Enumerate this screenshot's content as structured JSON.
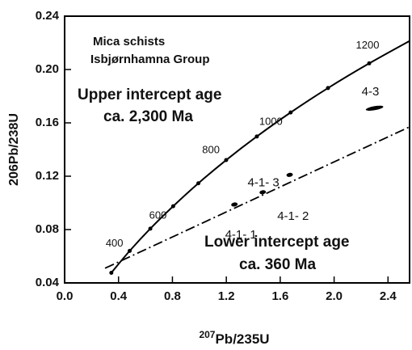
{
  "chart_data": {
    "type": "line",
    "xlabel": [
      "207",
      "Pb/235U"
    ],
    "ylabel": "206Pb/238U",
    "xlim": [
      0,
      2.56
    ],
    "ylim": [
      0.04,
      0.24
    ],
    "xticks": [
      {
        "value": 0,
        "label": "0.0"
      },
      0.4,
      0.8,
      1.2,
      1.6,
      {
        "value": 2,
        "label": "2.0"
      },
      2.4
    ],
    "yticks": [
      0.04,
      0.08,
      0.12,
      0.16,
      {
        "value": 0.2,
        "label": "0.20"
      },
      0.24
    ],
    "annotations": [
      "Mica schists",
      "Isbjørnhamna Group",
      "Upper intercept age",
      "ca. 2,300 Ma",
      "Lower intercept age",
      "ca. 360 Ma"
    ],
    "concordia": {
      "color": "#000",
      "x": [
        0.3466,
        0.4828,
        0.636,
        0.8056,
        0.9925,
        1.1987,
        1.4264,
        1.6774,
        1.9546,
        2.2603,
        2.5976
      ],
      "values": [
        0.0476,
        0.064,
        0.0807,
        0.0975,
        0.1147,
        0.1321,
        0.1498,
        0.1678,
        0.1861,
        0.2046,
        0.2235
      ],
      "labels": [
        null,
        "400",
        null,
        "600",
        null,
        "800",
        null,
        "1000",
        null,
        "1200",
        null
      ]
    },
    "discordia": {
      "color": "#000",
      "x": [
        0.3,
        2.56
      ],
      "values": [
        0.051,
        0.157
      ]
    },
    "points": {
      "color": "#000",
      "x": [
        1.26,
        1.47,
        1.67,
        2.3
      ],
      "values": [
        0.0988,
        0.108,
        0.121,
        0.171
      ],
      "labels": [
        "4-1- 1",
        "4-1- 2",
        "4-1- 3",
        "4-3"
      ]
    }
  }
}
